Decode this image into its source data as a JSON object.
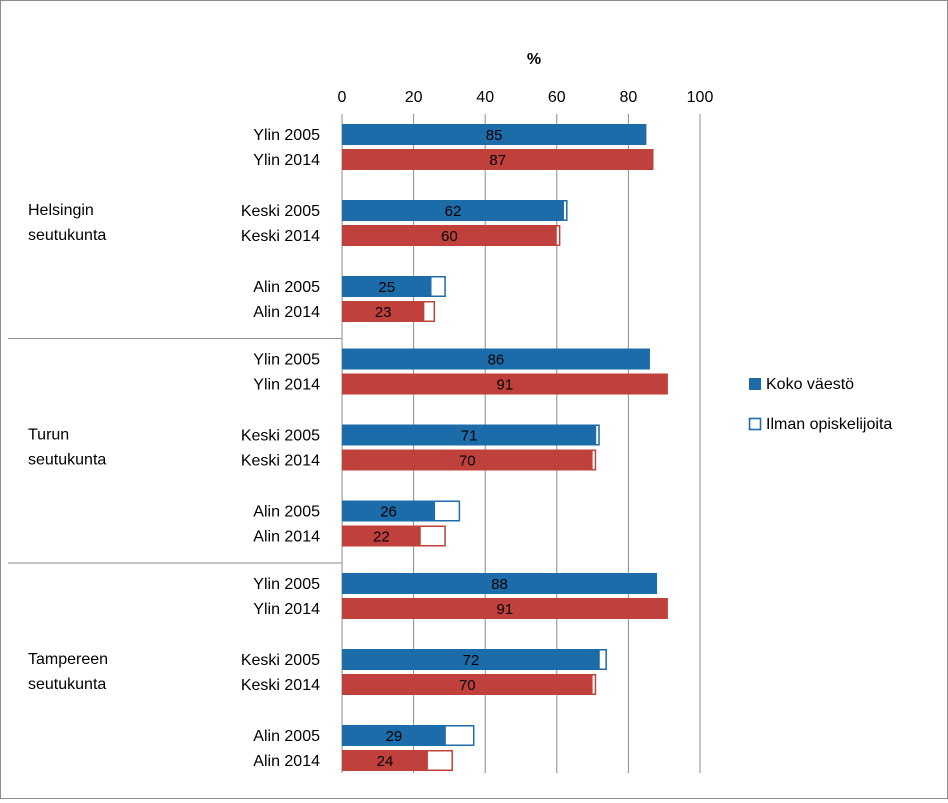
{
  "chart_data": {
    "type": "bar",
    "orientation": "horizontal",
    "xlabel": "%",
    "xlim": [
      0,
      100
    ],
    "x_ticks": [
      "0",
      "20",
      "40",
      "60",
      "80",
      "100"
    ],
    "grid": true,
    "legend_position": "right",
    "series": [
      {
        "name": "Koko väestö",
        "role": "filled"
      },
      {
        "name": "Ilman opiskelijoita",
        "role": "outline"
      }
    ],
    "colors": {
      "bar_2005": "#1b6ca8",
      "bar_2014": "#c0403c",
      "grid": "#8c8c8c"
    },
    "groups": [
      {
        "label_lines": [
          "Helsingin",
          "seutukunta"
        ],
        "bars": [
          {
            "label": "Ylin 2005",
            "year": 2005,
            "koko_vaesto": 85,
            "ilman_opiskelijoita": 85,
            "value_label": "85"
          },
          {
            "label": "Ylin 2014",
            "year": 2014,
            "koko_vaesto": 87,
            "ilman_opiskelijoita": 87,
            "value_label": "87"
          },
          {
            "label": "Keski 2005",
            "year": 2005,
            "koko_vaesto": 62,
            "ilman_opiskelijoita": 63,
            "value_label": "62"
          },
          {
            "label": "Keski 2014",
            "year": 2014,
            "koko_vaesto": 60,
            "ilman_opiskelijoita": 61,
            "value_label": "60"
          },
          {
            "label": "Alin 2005",
            "year": 2005,
            "koko_vaesto": 25,
            "ilman_opiskelijoita": 29,
            "value_label": "25"
          },
          {
            "label": "Alin 2014",
            "year": 2014,
            "koko_vaesto": 23,
            "ilman_opiskelijoita": 26,
            "value_label": "23"
          }
        ]
      },
      {
        "label_lines": [
          "Turun",
          "seutukunta"
        ],
        "bars": [
          {
            "label": "Ylin 2005",
            "year": 2005,
            "koko_vaesto": 86,
            "ilman_opiskelijoita": 86,
            "value_label": "86"
          },
          {
            "label": "Ylin 2014",
            "year": 2014,
            "koko_vaesto": 91,
            "ilman_opiskelijoita": 91,
            "value_label": "91"
          },
          {
            "label": "Keski 2005",
            "year": 2005,
            "koko_vaesto": 71,
            "ilman_opiskelijoita": 72,
            "value_label": "71"
          },
          {
            "label": "Keski 2014",
            "year": 2014,
            "koko_vaesto": 70,
            "ilman_opiskelijoita": 71,
            "value_label": "70"
          },
          {
            "label": "Alin 2005",
            "year": 2005,
            "koko_vaesto": 26,
            "ilman_opiskelijoita": 33,
            "value_label": "26"
          },
          {
            "label": "Alin 2014",
            "year": 2014,
            "koko_vaesto": 22,
            "ilman_opiskelijoita": 29,
            "value_label": "22"
          }
        ]
      },
      {
        "label_lines": [
          "Tampereen",
          "seutukunta"
        ],
        "bars": [
          {
            "label": "Ylin 2005",
            "year": 2005,
            "koko_vaesto": 88,
            "ilman_opiskelijoita": 88,
            "value_label": "88"
          },
          {
            "label": "Ylin 2014",
            "year": 2014,
            "koko_vaesto": 91,
            "ilman_opiskelijoita": 91,
            "value_label": "91"
          },
          {
            "label": "Keski 2005",
            "year": 2005,
            "koko_vaesto": 72,
            "ilman_opiskelijoita": 74,
            "value_label": "72"
          },
          {
            "label": "Keski 2014",
            "year": 2014,
            "koko_vaesto": 70,
            "ilman_opiskelijoita": 71,
            "value_label": "70"
          },
          {
            "label": "Alin 2005",
            "year": 2005,
            "koko_vaesto": 29,
            "ilman_opiskelijoita": 37,
            "value_label": "29"
          },
          {
            "label": "Alin 2014",
            "year": 2014,
            "koko_vaesto": 24,
            "ilman_opiskelijoita": 31,
            "value_label": "24"
          }
        ]
      }
    ]
  }
}
